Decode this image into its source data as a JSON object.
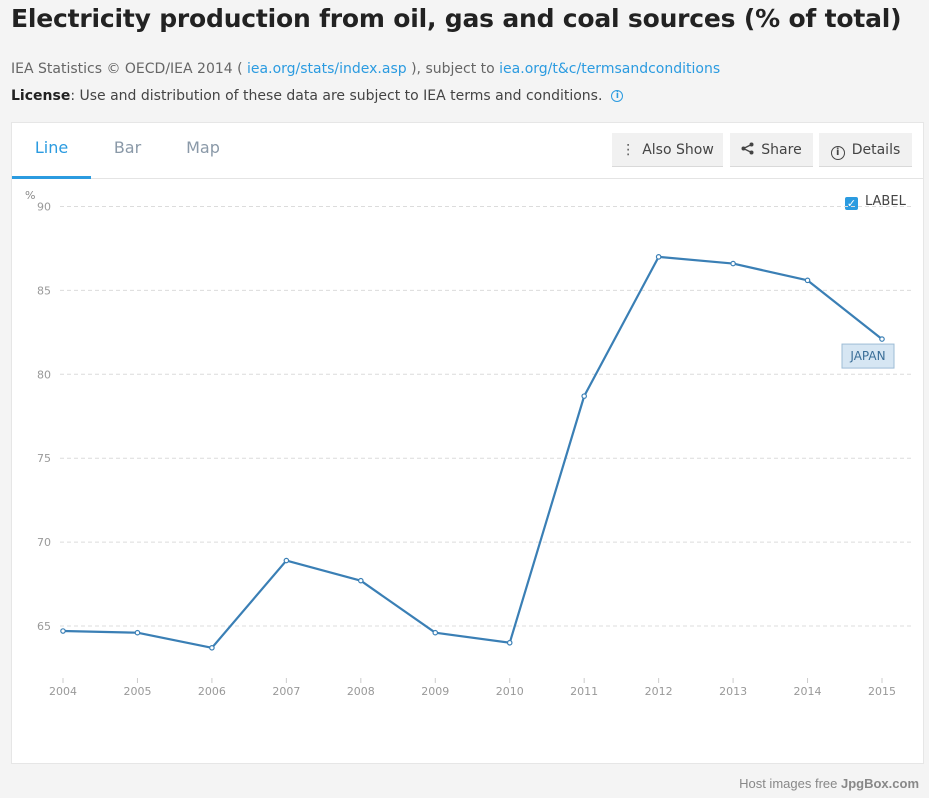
{
  "header": {
    "title": "Electricity production from oil, gas and coal sources (% of total)",
    "source_prefix": "IEA Statistics © OECD/IEA 2014 (",
    "source_link1": "iea.org/stats/index.asp",
    "source_middle": "), subject to",
    "source_link2": "iea.org/t&c/termsandconditions",
    "license_label": "License",
    "license_text": ": Use and distribution of these data are subject to IEA terms and conditions.",
    "info_icon": "info-icon"
  },
  "tabs": [
    {
      "label": "Line",
      "active": true
    },
    {
      "label": "Bar",
      "active": false
    },
    {
      "label": "Map",
      "active": false
    }
  ],
  "toolbar": {
    "also_show_label": "Also Show",
    "share_label": "Share",
    "details_label": "Details"
  },
  "label_toggle": {
    "label": "LABEL",
    "checked": true
  },
  "footer": {
    "prefix": "Host images free",
    "brand": "JpgBox.com"
  },
  "colors": {
    "accent": "#2b9be0",
    "series": "#3a7fb5"
  },
  "chart_data": {
    "type": "line",
    "title": "",
    "ylabel": "%",
    "xlabel": "",
    "x": [
      "2004",
      "2005",
      "2006",
      "2007",
      "2008",
      "2009",
      "2010",
      "2011",
      "2012",
      "2013",
      "2014",
      "2015"
    ],
    "series": [
      {
        "name": "JAPAN",
        "values": [
          64.7,
          64.6,
          63.7,
          68.9,
          67.7,
          64.6,
          64.0,
          78.7,
          87.0,
          86.6,
          85.6,
          82.1
        ]
      }
    ],
    "yticks": [
      65,
      70,
      75,
      80,
      85,
      90
    ],
    "ylim": [
      61.9,
      91.7
    ],
    "grid": true
  }
}
